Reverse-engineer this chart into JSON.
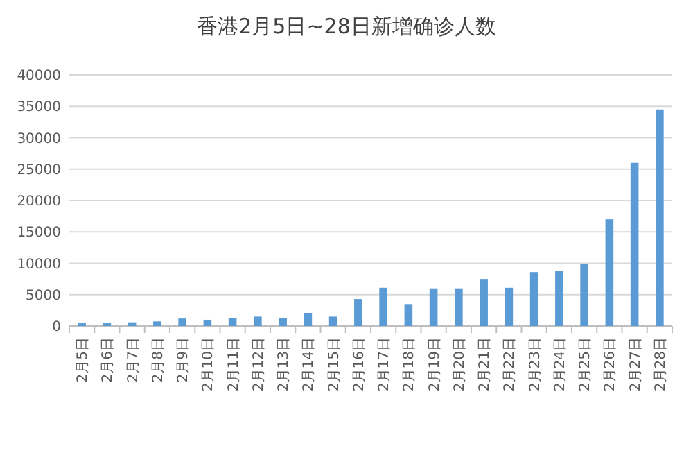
{
  "chart_data": {
    "type": "bar",
    "title": "香港2月5日~28日新增确诊人数",
    "categories": [
      "2月5日",
      "2月6日",
      "2月7日",
      "2月8日",
      "2月9日",
      "2月10日",
      "2月11日",
      "2月12日",
      "2月13日",
      "2月14日",
      "2月15日",
      "2月16日",
      "2月17日",
      "2月18日",
      "2月19日",
      "2月20日",
      "2月21日",
      "2月22日",
      "2月23日",
      "2月24日",
      "2月25日",
      "2月26日",
      "2月27日",
      "2月28日"
    ],
    "values": [
      440,
      440,
      590,
      740,
      1200,
      1000,
      1300,
      1500,
      1300,
      2100,
      1500,
      4300,
      6100,
      3500,
      6000,
      6000,
      7500,
      6100,
      8600,
      8800,
      9900,
      17000,
      26000,
      34500
    ],
    "color": "#5b9bd5",
    "ylim": [
      0,
      40000
    ],
    "yticks": [
      0,
      5000,
      10000,
      15000,
      20000,
      25000,
      30000,
      35000,
      40000
    ],
    "grid": "y"
  }
}
